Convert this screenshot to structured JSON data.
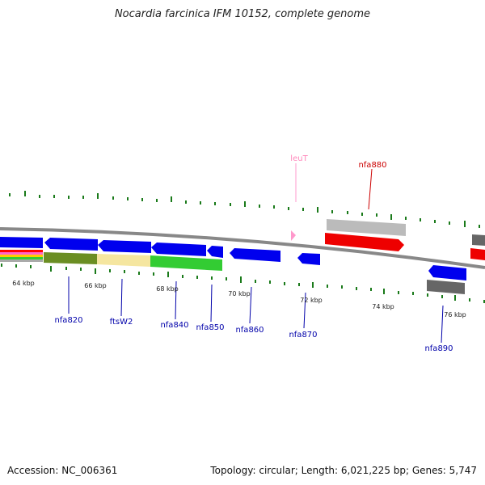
{
  "title": "Nocardia farcinica IFM 10152, complete genome",
  "footer": {
    "accession": "Accession: NC_006361",
    "summary": "Topology: circular; Length: 6,021,225 bp; Genes: 5,747"
  },
  "colors": {
    "cds": "#0000ee",
    "rna_pink": "#ff99cc",
    "red_gene": "#ee0000",
    "grey_gene": "#aaaaaa",
    "dark_grey_gene": "#666666",
    "backbone": "#888888",
    "tick": "#1a7a1a",
    "label_blue": "#0000aa",
    "label_red": "#cc0000",
    "label_pink": "#ff88bb"
  },
  "scale_labels": [
    "64 kbp",
    "66 kbp",
    "68 kbp",
    "70 kbp",
    "72 kbp",
    "74 kbp",
    "76 kbp"
  ],
  "gene_labels": {
    "leuT": "leuT",
    "nfa880": "nfa880",
    "nfa820": "nfa820",
    "ftsW2": "ftsW2",
    "nfa840": "nfa840",
    "nfa850": "nfa850",
    "nfa860": "nfa860",
    "nfa870": "nfa870",
    "nfa890": "nfa890"
  }
}
